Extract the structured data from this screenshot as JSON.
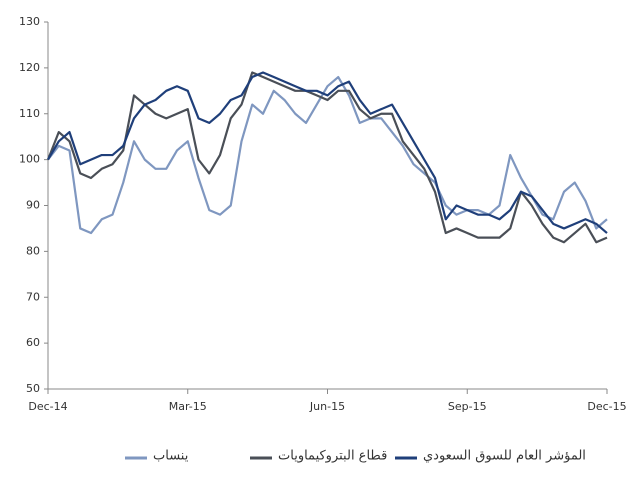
{
  "chart_data": {
    "type": "line",
    "categories": [
      "Dec-14",
      null,
      null,
      null,
      null,
      null,
      null,
      null,
      null,
      null,
      null,
      null,
      null,
      "Mar-15",
      null,
      null,
      null,
      null,
      null,
      null,
      null,
      null,
      null,
      null,
      null,
      null,
      "Jun-15",
      null,
      null,
      null,
      null,
      null,
      null,
      null,
      null,
      null,
      null,
      null,
      null,
      "Sep-15",
      null,
      null,
      null,
      null,
      null,
      null,
      null,
      null,
      null,
      null,
      null,
      null,
      "Dec-15"
    ],
    "series": [
      {
        "name": "ينساب",
        "color": "#7f97c0",
        "values": [
          100,
          103,
          102,
          85,
          84,
          87,
          88,
          95,
          104,
          100,
          98,
          98,
          102,
          104,
          96,
          89,
          88,
          90,
          104,
          112,
          110,
          115,
          113,
          110,
          108,
          112,
          116,
          118,
          114,
          108,
          109,
          109,
          106,
          103,
          99,
          97,
          95,
          90,
          88,
          89,
          89,
          88,
          90,
          101,
          96,
          92,
          88,
          87,
          93,
          95,
          91,
          85,
          87
        ]
      },
      {
        "name": "قطاع البتروكيماويات",
        "color": "#4a4f57",
        "values": [
          100,
          106,
          104,
          97,
          96,
          98,
          99,
          102,
          114,
          112,
          110,
          109,
          110,
          111,
          100,
          97,
          101,
          109,
          112,
          119,
          118,
          117,
          116,
          115,
          115,
          114,
          113,
          115,
          115,
          111,
          109,
          110,
          110,
          104,
          101,
          98,
          93,
          84,
          85,
          84,
          83,
          83,
          83,
          85,
          93,
          90,
          86,
          83,
          82,
          84,
          86,
          82,
          83
        ]
      },
      {
        "name": "المؤشر العام للسوق السعودي",
        "color": "#1f3f7a",
        "values": [
          100,
          104,
          106,
          99,
          100,
          101,
          101,
          103,
          109,
          112,
          113,
          115,
          116,
          115,
          109,
          108,
          110,
          113,
          114,
          118,
          119,
          118,
          117,
          116,
          115,
          115,
          114,
          116,
          117,
          113,
          110,
          111,
          112,
          108,
          104,
          100,
          96,
          87,
          90,
          89,
          88,
          88,
          87,
          89,
          93,
          92,
          89,
          86,
          85,
          86,
          87,
          86,
          84
        ]
      }
    ],
    "ylim": [
      50,
      130
    ],
    "yticks": [
      50,
      60,
      70,
      80,
      90,
      100,
      110,
      120,
      130
    ]
  }
}
